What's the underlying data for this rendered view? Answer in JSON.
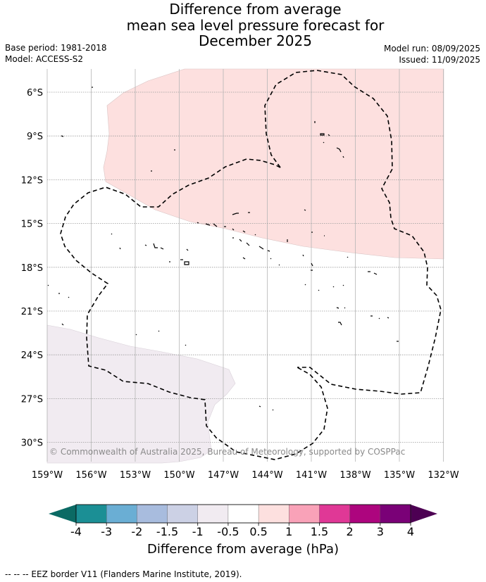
{
  "title": {
    "line1": "Difference from average",
    "line2": "mean sea level pressure forecast for",
    "line3": "December 2025"
  },
  "meta": {
    "base_period": "Base period: 1981-2018",
    "model": "Model: ACCESS-S2",
    "model_run": "Model run: 08/09/2025",
    "issued": "Issued: 11/09/2025"
  },
  "map": {
    "copyright": "© Commonwealth of Australia 2025, Bureau of Meteorology, supported by COSPPac",
    "lon_ticks": [
      "159°W",
      "156°W",
      "153°W",
      "150°W",
      "147°W",
      "144°W",
      "141°W",
      "138°W",
      "135°W",
      "132°W"
    ],
    "lat_ticks": [
      "6°S",
      "9°S",
      "12°S",
      "15°S",
      "18°S",
      "21°S",
      "24°S",
      "27°S",
      "30°S"
    ],
    "regions": [
      {
        "name": "positive-anomaly-region",
        "category": "0.5 to 1",
        "color": "#fde0df"
      },
      {
        "name": "negative-anomaly-region",
        "category": "-1 to -0.5",
        "color": "#f1ebf1"
      }
    ]
  },
  "colorbar": {
    "ticks": [
      "-4",
      "-3",
      "-2",
      "-1.5",
      "-1",
      "-0.5",
      "0.5",
      "1",
      "1.5",
      "2",
      "3",
      "4"
    ],
    "colors": [
      "#1b8f95",
      "#6aaed4",
      "#a8bcde",
      "#ccd1e5",
      "#f1ebf1",
      "#ffffff",
      "#fde0df",
      "#f9a2b8",
      "#e03896",
      "#ad057e",
      "#7a0177"
    ],
    "under_color": "#0b6a64",
    "over_color": "#4d0053",
    "label": "Difference from average (hPa)"
  },
  "footnote": "--  --  -- EEZ border V11 (Flanders Marine Institute, 2019)."
}
